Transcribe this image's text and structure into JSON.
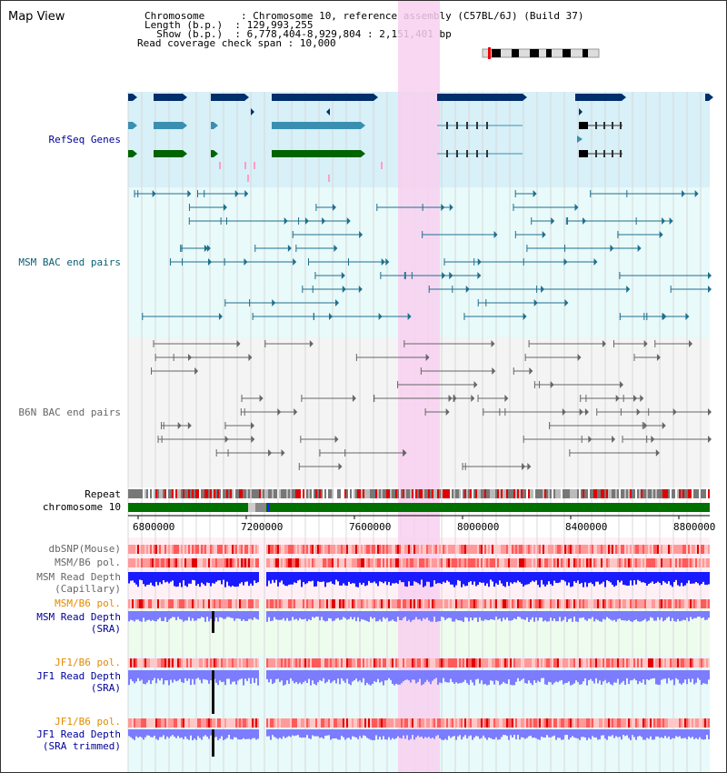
{
  "title": "Map View",
  "info": [
    {
      "label": "Chromosome      ",
      "value": "Chromosome 10, reference assembly (C57BL/6J) (Build 37)"
    },
    {
      "label": "Length (b.p.)  ",
      "value": "129,993,255"
    },
    {
      "label": "  Show (b.p.)  ",
      "value": "6,778,404-8,929,804 : 2,151,401 bp"
    },
    {
      "label": "Read coverage check span",
      "value": "10,000"
    }
  ],
  "tracks": {
    "refseq": "RefSeq Genes",
    "msm_bac": "MSM BAC end pairs",
    "b6n_bac": "B6N BAC end pairs",
    "repeat": "Repeat",
    "chromosome": "chromosome 10",
    "dbsnp": "dbSNP(Mouse)",
    "msm_b6_pol_1": "MSM/B6 pol.",
    "msm_read_depth_cap_1": "MSM Read Depth",
    "msm_read_depth_cap_2": "(Capillary)",
    "msm_b6_pol_2": "MSM/B6 pol.",
    "msm_read_depth_sra_1": "MSM Read Depth",
    "msm_read_depth_sra_2": "(SRA)",
    "jf1_b6_pol_1": "JF1/B6 pol.",
    "jf1_read_depth_1": "JF1 Read Depth",
    "jf1_read_depth_2": "(SRA)",
    "jf1_b6_pol_2": "JF1/B6 pol.",
    "jf1_read_depth_trim_1": "JF1 Read Depth",
    "jf1_read_depth_trim_2": "(SRA trimmed)"
  },
  "axis": {
    "ticks": [
      "6800000",
      "7200000",
      "7600000",
      "8000000",
      "8400000",
      "8800000"
    ]
  },
  "colors": {
    "refseq_bg": "#d8f0f8",
    "bac_bg": "#e8fafa",
    "b6n_bg": "#f4f4f4",
    "highlight": "#f8d0f0",
    "gene_dark": "#002f6c",
    "gene_mid": "#3a8fb0",
    "gene_green": "#006400",
    "msm_line": "#1f6f8f",
    "b6n_line": "#666666",
    "chrom_green": "#007000",
    "depth_blue": "#1a1aff",
    "depth_light": "#7c7cff"
  }
}
